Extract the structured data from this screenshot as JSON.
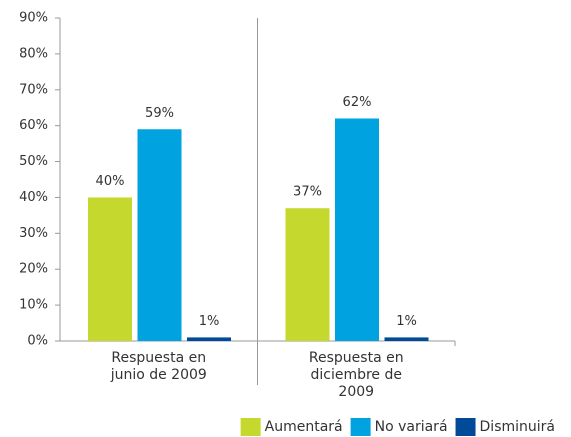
{
  "chart_data": {
    "type": "bar",
    "categories": [
      "Respuesta en junio de 2009",
      "Respuesta en diciembre de 2009"
    ],
    "series": [
      {
        "name": "Aumentará",
        "color": "#c5d82e",
        "values": [
          40,
          37
        ],
        "value_labels": [
          "40%",
          "37%"
        ]
      },
      {
        "name": "No variará",
        "color": "#00a3e0",
        "values": [
          59,
          62
        ],
        "value_labels": [
          "59%",
          "62%"
        ]
      },
      {
        "name": "Disminuirá",
        "color": "#004a98",
        "values": [
          1,
          1
        ],
        "value_labels": [
          "1%",
          "1%"
        ]
      }
    ],
    "ylim": [
      0,
      90
    ],
    "yticks": [
      {
        "value": 0,
        "label": "0%"
      },
      {
        "value": 10,
        "label": "10%"
      },
      {
        "value": 20,
        "label": "20%"
      },
      {
        "value": 30,
        "label": "30%"
      },
      {
        "value": 40,
        "label": "40%"
      },
      {
        "value": 50,
        "label": "50%"
      },
      {
        "value": 60,
        "label": "60%"
      },
      {
        "value": 70,
        "label": "70%"
      },
      {
        "value": 80,
        "label": "80%"
      },
      {
        "value": 90,
        "label": "90%"
      }
    ],
    "legend": "bottom-right"
  }
}
